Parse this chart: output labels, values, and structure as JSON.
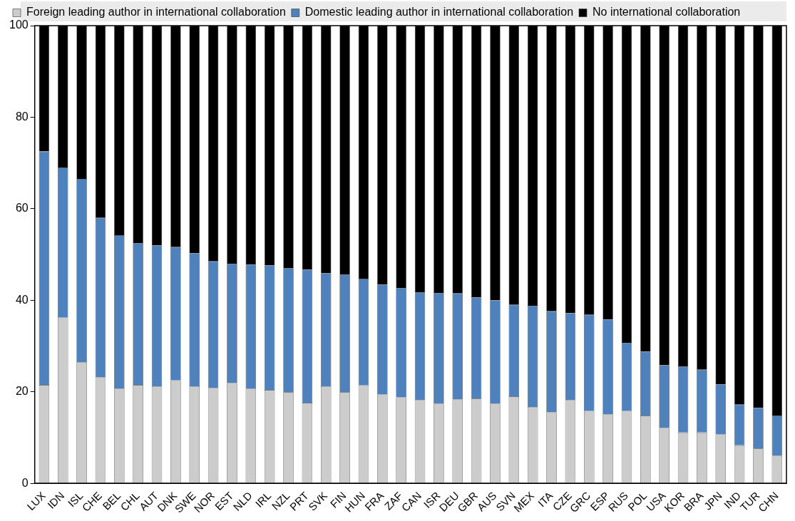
{
  "chart_data": {
    "type": "bar",
    "stacked": true,
    "categories": [
      "LUX",
      "IDN",
      "ISL",
      "CHE",
      "BEL",
      "CHL",
      "AUT",
      "DNK",
      "SWE",
      "NOR",
      "EST",
      "NLD",
      "IRL",
      "NZL",
      "PRT",
      "SVK",
      "FIN",
      "HUN",
      "FRA",
      "ZAF",
      "CAN",
      "ISR",
      "DEU",
      "GBR",
      "AUS",
      "SVN",
      "MEX",
      "ITA",
      "CZE",
      "GRC",
      "ESP",
      "RUS",
      "POL",
      "USA",
      "KOR",
      "BRA",
      "JPN",
      "IND",
      "TUR",
      "CHN"
    ],
    "series": [
      {
        "name": "Foreign leading author in international collaboration",
        "color": "#cccccc",
        "values": [
          21.5,
          36.2,
          26.5,
          23.2,
          20.7,
          21.5,
          21.2,
          22.5,
          21.2,
          20.8,
          21.9,
          20.7,
          20.4,
          19.9,
          17.6,
          21.2,
          19.9,
          21.4,
          19.4,
          18.8,
          18.2,
          17.4,
          18.3,
          18.5,
          17.4,
          19,
          16.7,
          15.5,
          18.2,
          15.8,
          15.1,
          15.8,
          14.8,
          12.1,
          11.1,
          11.1,
          10.7,
          8.3,
          7.6,
          6
        ]
      },
      {
        "name": "Domestic leading author in international collaboration",
        "color": "#4f81bd",
        "values": [
          51,
          32.8,
          40,
          34.8,
          33.5,
          31,
          30.8,
          29.1,
          29.1,
          27.7,
          26.1,
          27.1,
          27.2,
          27.1,
          29.1,
          24.7,
          25.7,
          23.3,
          24,
          23.9,
          23.5,
          24.2,
          23.2,
          22.1,
          22.6,
          20,
          22.1,
          22.1,
          19,
          21,
          20.7,
          14.9,
          14,
          13.7,
          14.4,
          13.7,
          10.9,
          8.9,
          8.9,
          8.8
        ]
      },
      {
        "name": "No international collaboration",
        "color": "#000000",
        "values": [
          27.5,
          31,
          33.5,
          42,
          45.8,
          47.5,
          48,
          48.4,
          49.7,
          51.5,
          52,
          52.2,
          52.4,
          53,
          53.3,
          54.1,
          54.4,
          55.3,
          56.6,
          57.3,
          58.3,
          58.4,
          58.5,
          59.4,
          60,
          61,
          61.2,
          62.4,
          62.8,
          63.2,
          64.2,
          69.3,
          71.2,
          74.2,
          74.5,
          75.2,
          78.4,
          82.8,
          83.5,
          85.2
        ]
      }
    ],
    "ylim": [
      0,
      100
    ],
    "yticks": [
      0,
      20,
      40,
      60,
      80,
      100
    ],
    "legend": "top"
  }
}
